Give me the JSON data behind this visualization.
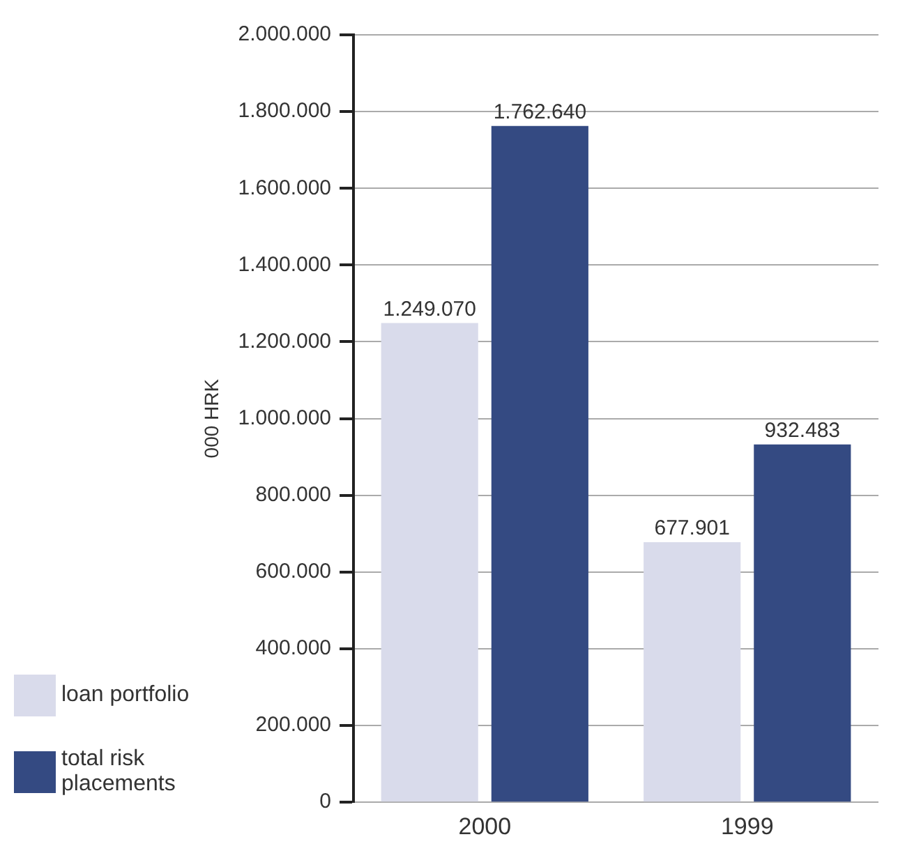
{
  "chart_data": {
    "type": "bar",
    "ylabel": "000 HRK",
    "categories": [
      "2000",
      "1999"
    ],
    "series": [
      {
        "name": "loan portfolio",
        "color": "#d9dbeb",
        "values": [
          1249070,
          677901
        ],
        "value_labels": [
          "1.249.070",
          "677.901"
        ]
      },
      {
        "name": "total risk placements",
        "color": "#344a82",
        "values": [
          1762640,
          932483
        ],
        "value_labels": [
          "1.762.640",
          "932.483"
        ]
      }
    ],
    "ylim": [
      0,
      2000000
    ],
    "yticks": [
      {
        "value": 0,
        "label": "0"
      },
      {
        "value": 200000,
        "label": "200.000"
      },
      {
        "value": 400000,
        "label": "400.000"
      },
      {
        "value": 600000,
        "label": "600.000"
      },
      {
        "value": 800000,
        "label": "800.000"
      },
      {
        "value": 1000000,
        "label": "1.000.000"
      },
      {
        "value": 1200000,
        "label": "1.200.000"
      },
      {
        "value": 1400000,
        "label": "1.400.000"
      },
      {
        "value": 1600000,
        "label": "1.600.000"
      },
      {
        "value": 1800000,
        "label": "1.800.000"
      },
      {
        "value": 2000000,
        "label": "2.000.000"
      }
    ],
    "grid": "y",
    "legend": "bottom left"
  }
}
